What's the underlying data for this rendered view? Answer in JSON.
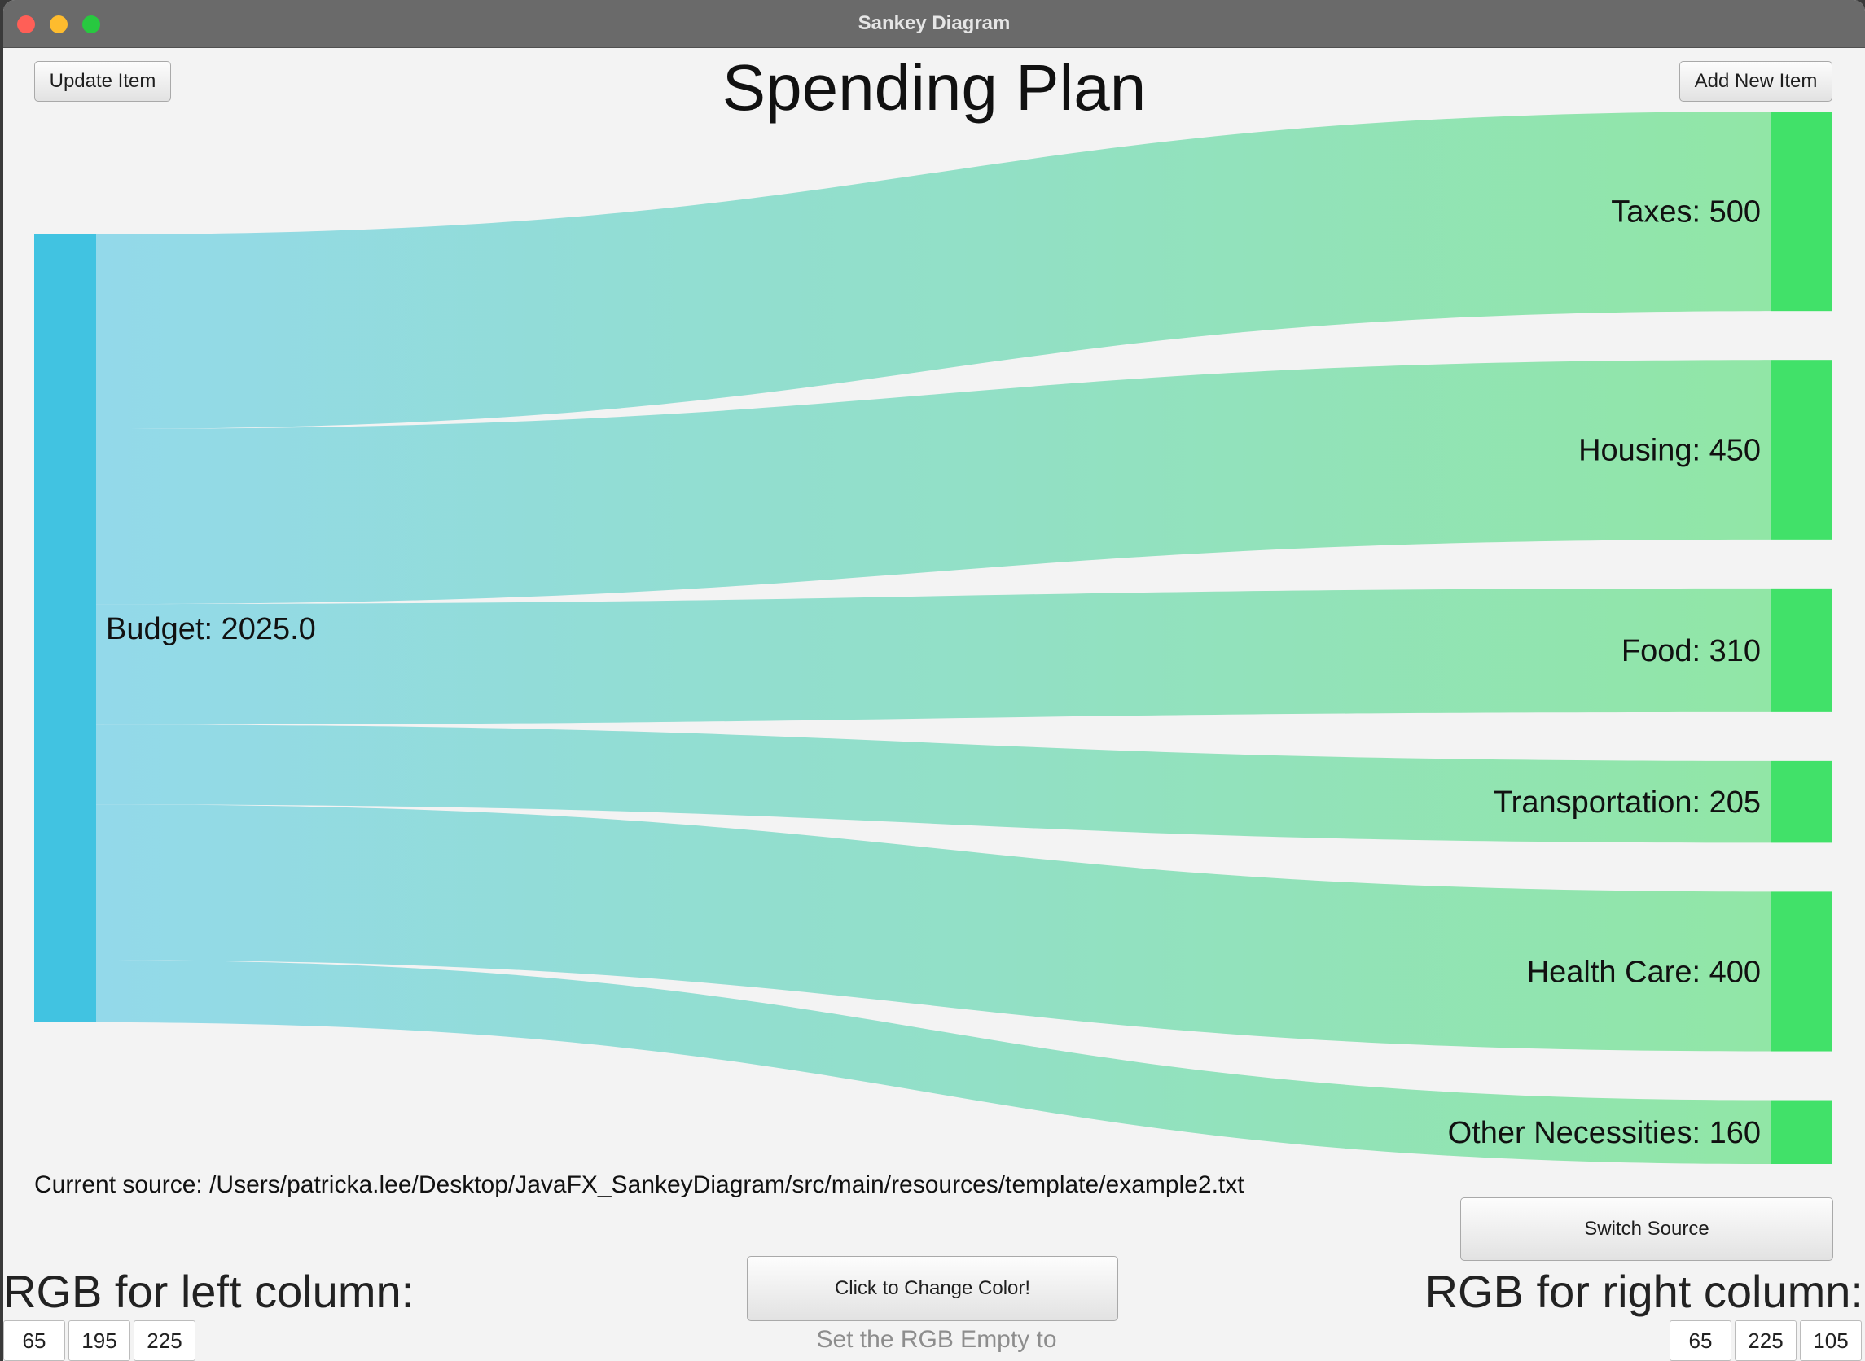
{
  "window": {
    "title": "Sankey Diagram"
  },
  "toolbar": {
    "update_label": "Update Item",
    "add_label": "Add New Item"
  },
  "heading": "Spending Plan",
  "chart_data": {
    "type": "sankey",
    "title": "Spending Plan",
    "source_node": {
      "label": "Budget: 2025.0",
      "value": 2025.0
    },
    "targets": [
      {
        "name": "Taxes",
        "value": 500,
        "label": "Taxes: 500"
      },
      {
        "name": "Housing",
        "value": 450,
        "label": "Housing: 450"
      },
      {
        "name": "Food",
        "value": 310,
        "label": "Food: 310"
      },
      {
        "name": "Transportation",
        "value": 205,
        "label": "Transportation: 205"
      },
      {
        "name": "Health Care",
        "value": 400,
        "label": "Health Care: 400"
      },
      {
        "name": "Other Necessities",
        "value": 160,
        "label": "Other Necessities: 160"
      }
    ],
    "left_color": "#41c3e1",
    "right_color": "#41e169"
  },
  "source": {
    "text": "Current source: /Users/patricka.lee/Desktop/JavaFX_SankeyDiagram/src/main/resources/template/example2.txt"
  },
  "buttons": {
    "switch_source": "Switch Source",
    "change_color": "Click to Change Color!"
  },
  "hint": "Set the RGB Empty to Randomize.",
  "rgb_left": {
    "label": "RGB for left column:",
    "r": "65",
    "g": "195",
    "b": "225"
  },
  "rgb_right": {
    "label": "RGB for right column:",
    "r": "65",
    "g": "225",
    "b": "105"
  }
}
